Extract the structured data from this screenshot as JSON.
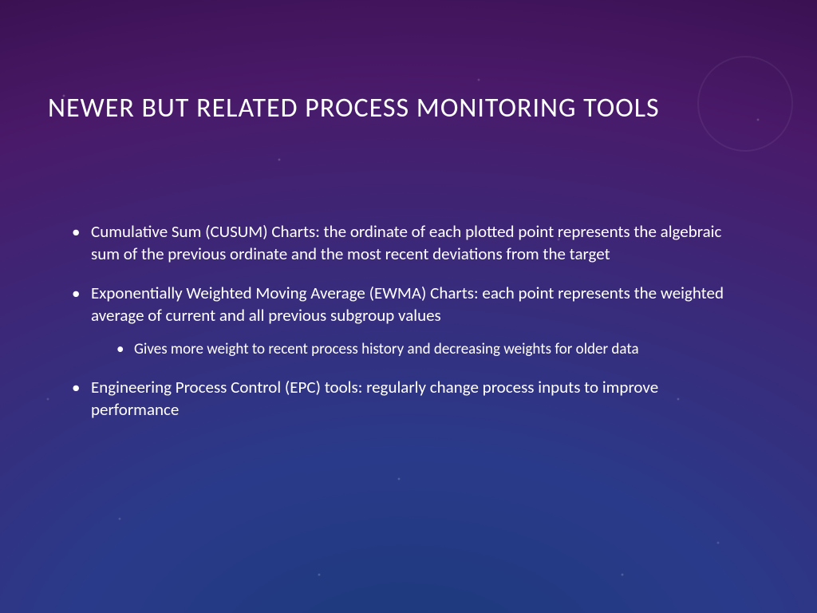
{
  "title": "NEWER BUT RELATED PROCESS MONITORING TOOLS",
  "bullets": [
    {
      "text": "Cumulative Sum (CUSUM) Charts: the ordinate of each plotted point represents the algebraic sum of the previous ordinate and the most recent deviations from the target"
    },
    {
      "text": "Exponentially Weighted Moving Average (EWMA) Charts: each point represents the weighted average of current and all previous subgroup values",
      "sub": [
        "Gives more weight to recent process history and decreasing weights for older data"
      ]
    },
    {
      "text": "Engineering Process Control (EPC) tools: regularly change process inputs to improve performance"
    }
  ],
  "style": {
    "text_color": "#ffffff",
    "title_fontsize": 34,
    "body_fontsize": 21,
    "sub_fontsize": 19,
    "background_gradient": {
      "type": "radial",
      "stops": [
        "#1a3a7a",
        "#2a3a8a",
        "#3a2a7a",
        "#4a1a6a",
        "#3a1050"
      ]
    }
  }
}
